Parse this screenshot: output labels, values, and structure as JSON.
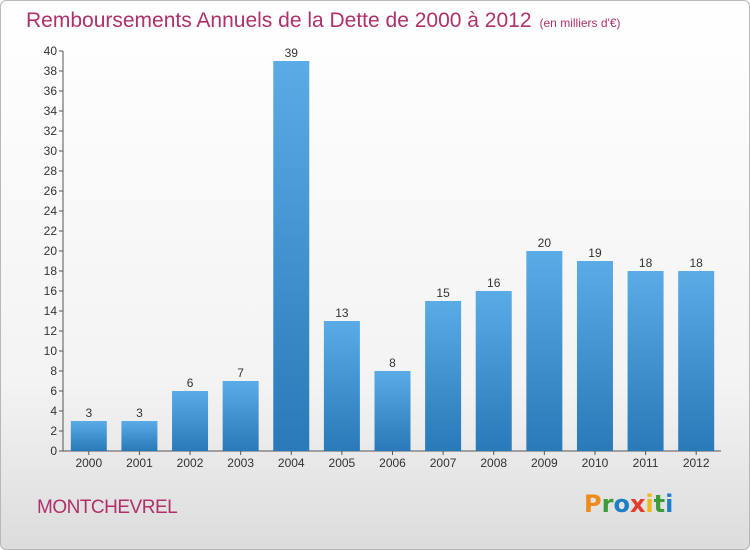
{
  "chart_data": {
    "type": "bar",
    "title": "Remboursements Annuels de la Dette de 2000 à 2012",
    "unit_note": "(en milliers d'€)",
    "categories": [
      "2000",
      "2001",
      "2002",
      "2003",
      "2004",
      "2005",
      "2006",
      "2007",
      "2008",
      "2009",
      "2010",
      "2011",
      "2012"
    ],
    "values": [
      3,
      3,
      6,
      7,
      39,
      13,
      8,
      15,
      16,
      20,
      19,
      18,
      18
    ],
    "ylim": [
      0,
      40
    ],
    "ytick_step": 2,
    "grid": false,
    "bar_color_top": "#5aabe6",
    "bar_color_bottom": "#2a79b8"
  },
  "footer": {
    "commune": "MONTCHEVREL",
    "logo_letters": [
      {
        "ch": "P",
        "color": "#f08a1c"
      },
      {
        "ch": "r",
        "color": "#3d9b3a"
      },
      {
        "ch": "o",
        "color": "#1e7fc4"
      },
      {
        "ch": "x",
        "color": "#e23c2a"
      },
      {
        "ch": "i",
        "color": "#f1b81b"
      },
      {
        "ch": "t",
        "color": "#3d9b3a"
      },
      {
        "ch": "i",
        "color": "#1e7fc4"
      }
    ]
  },
  "colors": {
    "title": "#b0306a",
    "axis": "#555555"
  }
}
